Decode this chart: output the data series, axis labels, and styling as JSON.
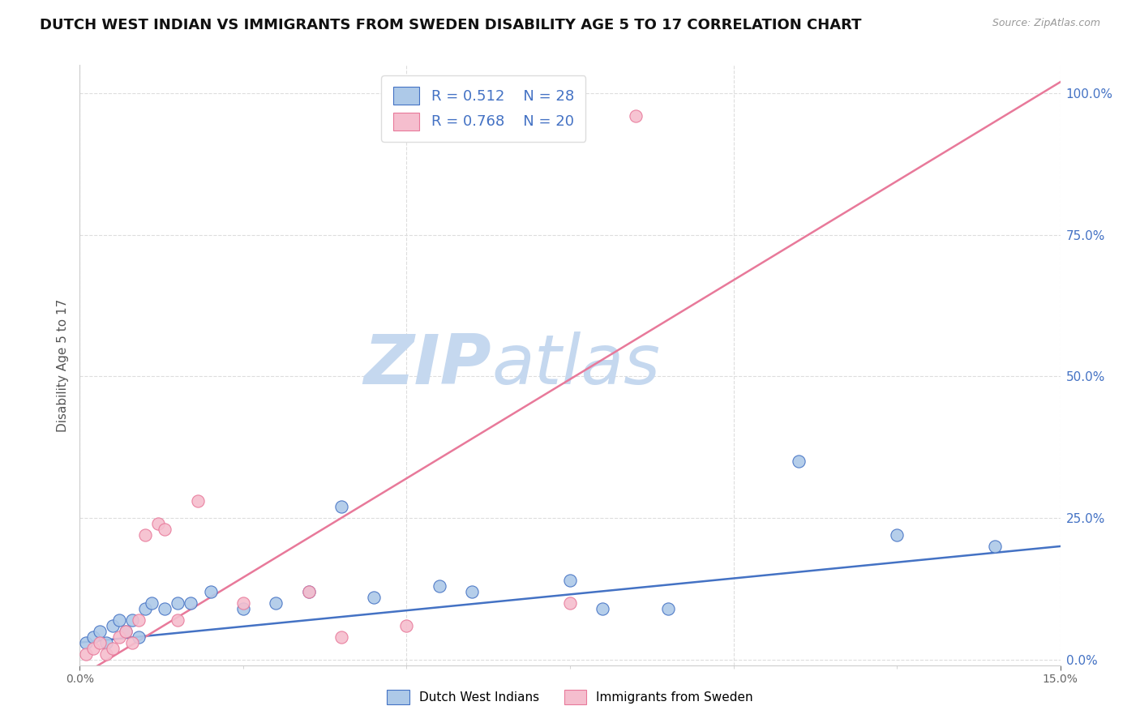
{
  "title": "DUTCH WEST INDIAN VS IMMIGRANTS FROM SWEDEN DISABILITY AGE 5 TO 17 CORRELATION CHART",
  "source": "Source: ZipAtlas.com",
  "ylabel": "Disability Age 5 to 17",
  "x_min": 0.0,
  "x_max": 0.15,
  "y_min": -0.01,
  "y_max": 1.05,
  "x_ticks": [
    0.0,
    0.15
  ],
  "x_tick_labels": [
    "0.0%",
    "15.0%"
  ],
  "y_ticks_right": [
    0.0,
    0.25,
    0.5,
    0.75,
    1.0
  ],
  "y_tick_labels_right": [
    "0.0%",
    "25.0%",
    "50.0%",
    "75.0%",
    "100.0%"
  ],
  "blue_scatter_x": [
    0.001,
    0.002,
    0.003,
    0.004,
    0.005,
    0.006,
    0.007,
    0.008,
    0.009,
    0.01,
    0.011,
    0.013,
    0.015,
    0.017,
    0.02,
    0.025,
    0.03,
    0.035,
    0.04,
    0.045,
    0.055,
    0.06,
    0.075,
    0.08,
    0.09,
    0.11,
    0.125,
    0.14
  ],
  "blue_scatter_y": [
    0.03,
    0.04,
    0.05,
    0.03,
    0.06,
    0.07,
    0.05,
    0.07,
    0.04,
    0.09,
    0.1,
    0.09,
    0.1,
    0.1,
    0.12,
    0.09,
    0.1,
    0.12,
    0.27,
    0.11,
    0.13,
    0.12,
    0.14,
    0.09,
    0.09,
    0.35,
    0.22,
    0.2
  ],
  "pink_scatter_x": [
    0.001,
    0.002,
    0.003,
    0.004,
    0.005,
    0.006,
    0.007,
    0.008,
    0.009,
    0.01,
    0.012,
    0.013,
    0.015,
    0.018,
    0.025,
    0.035,
    0.04,
    0.05,
    0.075,
    0.085
  ],
  "pink_scatter_y": [
    0.01,
    0.02,
    0.03,
    0.01,
    0.02,
    0.04,
    0.05,
    0.03,
    0.07,
    0.22,
    0.24,
    0.23,
    0.07,
    0.28,
    0.1,
    0.12,
    0.04,
    0.06,
    0.1,
    0.96
  ],
  "blue_line_x": [
    0.0,
    0.15
  ],
  "blue_line_y": [
    0.03,
    0.2
  ],
  "pink_line_x": [
    0.0,
    0.15
  ],
  "pink_line_y": [
    -0.03,
    1.02
  ],
  "blue_color": "#adc9e8",
  "pink_color": "#f5bece",
  "blue_line_color": "#4472c4",
  "pink_line_color": "#e8799a",
  "R_blue": "0.512",
  "N_blue": "28",
  "R_pink": "0.768",
  "N_pink": "20",
  "legend_label_blue": "Dutch West Indians",
  "legend_label_pink": "Immigrants from Sweden",
  "watermark_left": "ZIP",
  "watermark_right": "atlas",
  "watermark_color": "#c5d8ef",
  "grid_color": "#dddddd",
  "title_fontsize": 13,
  "axis_label_fontsize": 11,
  "tick_fontsize": 10,
  "legend_text_color": "#4472c4"
}
